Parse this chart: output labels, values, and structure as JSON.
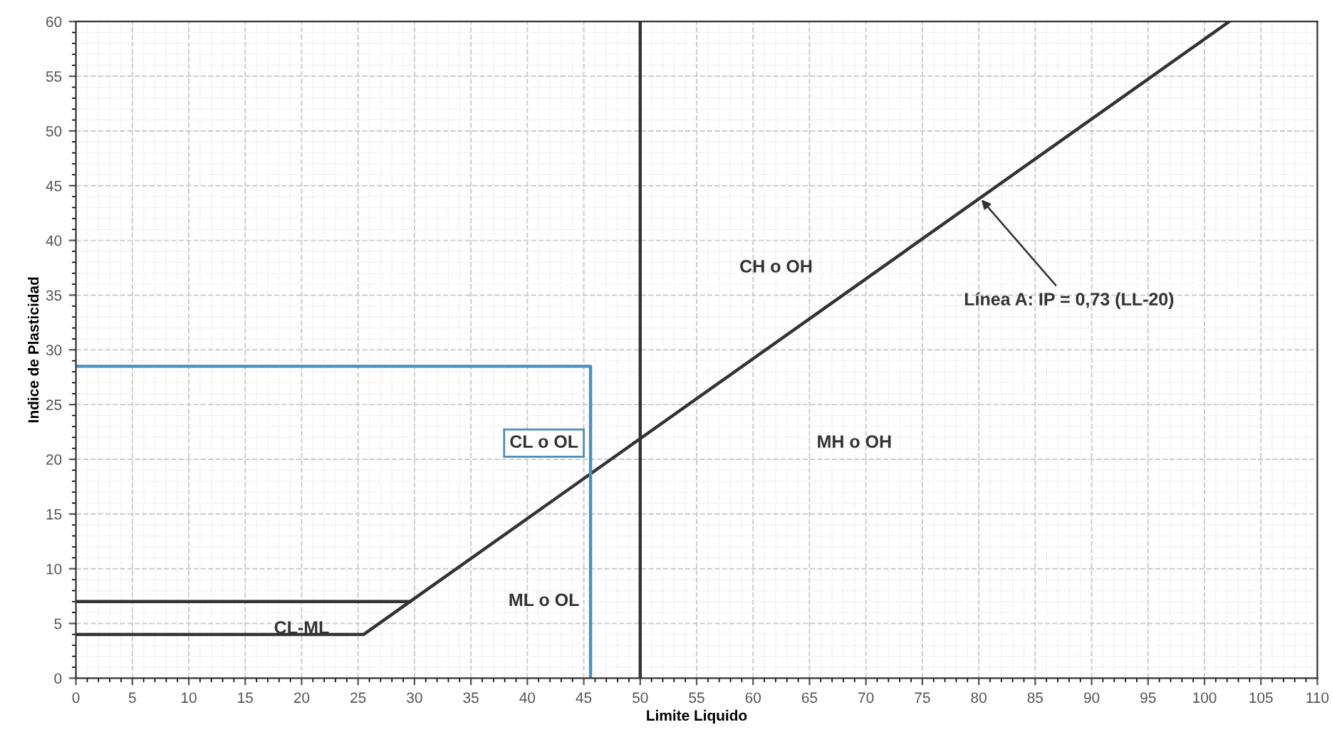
{
  "chart_data": {
    "type": "line",
    "xlabel": "Limite Liquido",
    "ylabel": "Indice de Plasticidad",
    "xlim": [
      0,
      110
    ],
    "ylim": [
      0,
      60
    ],
    "xticks": [
      0,
      5,
      10,
      15,
      20,
      25,
      30,
      35,
      40,
      45,
      50,
      55,
      60,
      65,
      70,
      75,
      80,
      85,
      90,
      95,
      100,
      105,
      110
    ],
    "yticks": [
      0,
      5,
      10,
      15,
      20,
      25,
      30,
      35,
      40,
      45,
      50,
      55,
      60
    ],
    "grid": true,
    "marker": "none",
    "line_style": "solid",
    "series": [
      {
        "color": "#333333",
        "x": [
          0,
          25.5,
          102.2
        ],
        "values": [
          4,
          4,
          60
        ]
      },
      {
        "color": "#333333",
        "x": [
          0,
          29.6
        ],
        "values": [
          7,
          7
        ]
      },
      {
        "color": "#4a8fc0",
        "x": [
          0,
          45.6,
          45.6
        ],
        "values": [
          28.5,
          28.5,
          0
        ]
      }
    ],
    "ref_lines": [
      {
        "axis": "x",
        "value": 50,
        "color": "#333333"
      }
    ],
    "annotations": [
      "CL o OL",
      "ML o OL",
      {
        "text": "CL-ML",
        "x": 20,
        "y": 4.5
      },
      "CH o OH",
      "MH o OH",
      {
        "text": "Línea A: IP = 0,73 (LL-20)",
        "x": 80,
        "y": 44
      }
    ]
  }
}
